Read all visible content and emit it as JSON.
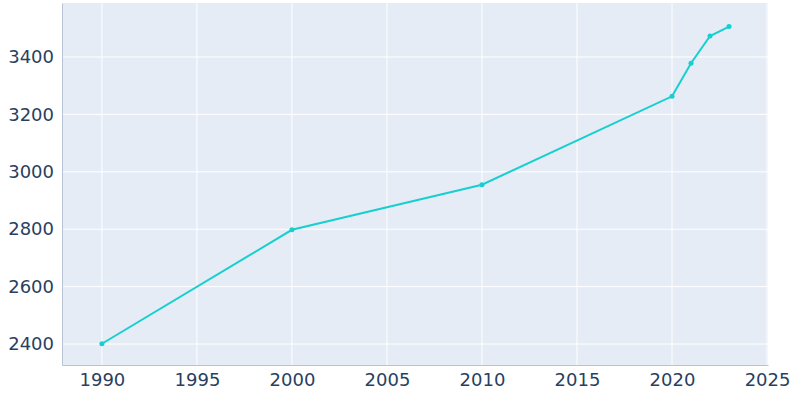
{
  "chart_data": {
    "type": "line",
    "x": [
      1990,
      2000,
      2010,
      2020,
      2021,
      2022,
      2023
    ],
    "values": [
      2401,
      2798,
      2955,
      3263,
      3378,
      3473,
      3506
    ],
    "color": "#17cfcf",
    "marker": "circle",
    "xlim": [
      1987.9,
      2025.05
    ],
    "xticks": [
      1990,
      1995,
      2000,
      2005,
      2010,
      2015,
      2020,
      2025
    ],
    "ylim": [
      2327,
      3588
    ],
    "yticks": [
      2400,
      2600,
      2800,
      3000,
      3200,
      3400
    ],
    "grid": true
  }
}
